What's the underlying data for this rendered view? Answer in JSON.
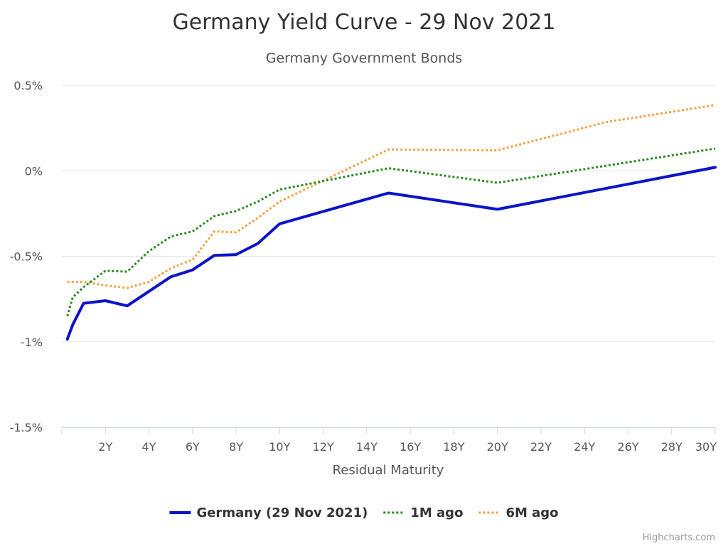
{
  "chart_data": {
    "type": "line",
    "title": "Germany Yield Curve - 29 Nov 2021",
    "subtitle": "Germany Government Bonds",
    "xlabel": "Residual Maturity",
    "ylabel": "",
    "xlim": [
      0,
      30
    ],
    "ylim": [
      -1.5,
      0.5
    ],
    "x_ticks": [
      {
        "value": 2,
        "label": "2Y"
      },
      {
        "value": 4,
        "label": "4Y"
      },
      {
        "value": 6,
        "label": "6Y"
      },
      {
        "value": 8,
        "label": "8Y"
      },
      {
        "value": 10,
        "label": "10Y"
      },
      {
        "value": 12,
        "label": "12Y"
      },
      {
        "value": 14,
        "label": "14Y"
      },
      {
        "value": 16,
        "label": "16Y"
      },
      {
        "value": 18,
        "label": "18Y"
      },
      {
        "value": 20,
        "label": "20Y"
      },
      {
        "value": 22,
        "label": "22Y"
      },
      {
        "value": 24,
        "label": "24Y"
      },
      {
        "value": 26,
        "label": "26Y"
      },
      {
        "value": 28,
        "label": "28Y"
      },
      {
        "value": 30,
        "label": "30Y"
      }
    ],
    "y_ticks": [
      {
        "value": 0.5,
        "label": "0.5%"
      },
      {
        "value": 0,
        "label": "0%"
      },
      {
        "value": -0.5,
        "label": "-0.5%"
      },
      {
        "value": -1,
        "label": "-1%"
      },
      {
        "value": -1.5,
        "label": "-1.5%"
      }
    ],
    "grid": true,
    "legend_position": "bottom-center",
    "series": [
      {
        "name": "Germany (29 Nov 2021)",
        "color": "#0a14c8",
        "dash": "solid",
        "points": [
          [
            0.25,
            -0.985
          ],
          [
            0.5,
            -0.9
          ],
          [
            1,
            -0.775
          ],
          [
            2,
            -0.76
          ],
          [
            3,
            -0.79
          ],
          [
            4,
            -0.705
          ],
          [
            5,
            -0.62
          ],
          [
            6,
            -0.58
          ],
          [
            7,
            -0.495
          ],
          [
            8,
            -0.49
          ],
          [
            9,
            -0.425
          ],
          [
            10,
            -0.31
          ],
          [
            15,
            -0.13
          ],
          [
            20,
            -0.225
          ],
          [
            30,
            0.02
          ]
        ]
      },
      {
        "name": "1M ago",
        "color": "#2a8a1e",
        "dash": "dotted",
        "points": [
          [
            0.25,
            -0.85
          ],
          [
            0.5,
            -0.74
          ],
          [
            1,
            -0.68
          ],
          [
            2,
            -0.585
          ],
          [
            3,
            -0.59
          ],
          [
            4,
            -0.47
          ],
          [
            5,
            -0.385
          ],
          [
            6,
            -0.355
          ],
          [
            7,
            -0.265
          ],
          [
            8,
            -0.235
          ],
          [
            9,
            -0.18
          ],
          [
            10,
            -0.11
          ],
          [
            15,
            0.015
          ],
          [
            20,
            -0.07
          ],
          [
            30,
            0.13
          ]
        ]
      },
      {
        "name": "6M ago",
        "color": "#f4a142",
        "dash": "dotted",
        "points": [
          [
            0.25,
            -0.65
          ],
          [
            1,
            -0.65
          ],
          [
            2,
            -0.67
          ],
          [
            3,
            -0.685
          ],
          [
            4,
            -0.65
          ],
          [
            5,
            -0.57
          ],
          [
            6,
            -0.52
          ],
          [
            7,
            -0.355
          ],
          [
            8,
            -0.36
          ],
          [
            9,
            -0.275
          ],
          [
            10,
            -0.18
          ],
          [
            15,
            0.125
          ],
          [
            20,
            0.12
          ],
          [
            25,
            0.285
          ],
          [
            30,
            0.385
          ]
        ]
      }
    ]
  },
  "credits": "Highcharts.com"
}
